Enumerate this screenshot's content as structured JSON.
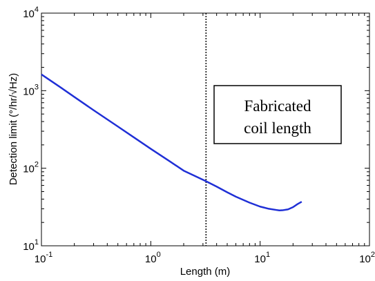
{
  "chart_data": {
    "type": "line",
    "title": "",
    "xlabel": "Length (m)",
    "ylabel": "Detection limit (°/hr/√Hz)",
    "xscale": "log",
    "yscale": "log",
    "xlim": [
      0.1,
      100
    ],
    "ylim": [
      10,
      10000
    ],
    "x_ticks": [
      {
        "base": "10",
        "exp": "-1",
        "value": 0.1
      },
      {
        "base": "10",
        "exp": "0",
        "value": 1
      },
      {
        "base": "10",
        "exp": "1",
        "value": 10
      },
      {
        "base": "10",
        "exp": "2",
        "value": 100
      }
    ],
    "y_ticks": [
      {
        "base": "10",
        "exp": "1",
        "value": 10
      },
      {
        "base": "10",
        "exp": "2",
        "value": 100
      },
      {
        "base": "10",
        "exp": "3",
        "value": 1000
      },
      {
        "base": "10",
        "exp": "4",
        "value": 10000
      }
    ],
    "grid": false,
    "series": [
      {
        "color": "#1f2fd6",
        "x": [
          0.1,
          0.15,
          0.2,
          0.3,
          0.5,
          0.7,
          1.0,
          1.5,
          2.0,
          3.0,
          3.2,
          4.0,
          5.0,
          6.0,
          8.0,
          10.0,
          12.0,
          14.0,
          15.0,
          16.0,
          18.0,
          20.0,
          22.0,
          24.0
        ],
        "y": [
          1620,
          1100,
          830,
          560,
          345,
          250,
          178,
          122,
          93,
          71,
          68,
          58,
          49,
          43,
          36,
          32,
          30,
          29,
          28.6,
          28.7,
          29.5,
          31.5,
          34.5,
          37
        ]
      }
    ],
    "reference_line": {
      "x": 3.2,
      "style": "dotted",
      "color": "#000000"
    },
    "annotation": {
      "lines": [
        "Fabricated",
        "coil length"
      ]
    }
  }
}
